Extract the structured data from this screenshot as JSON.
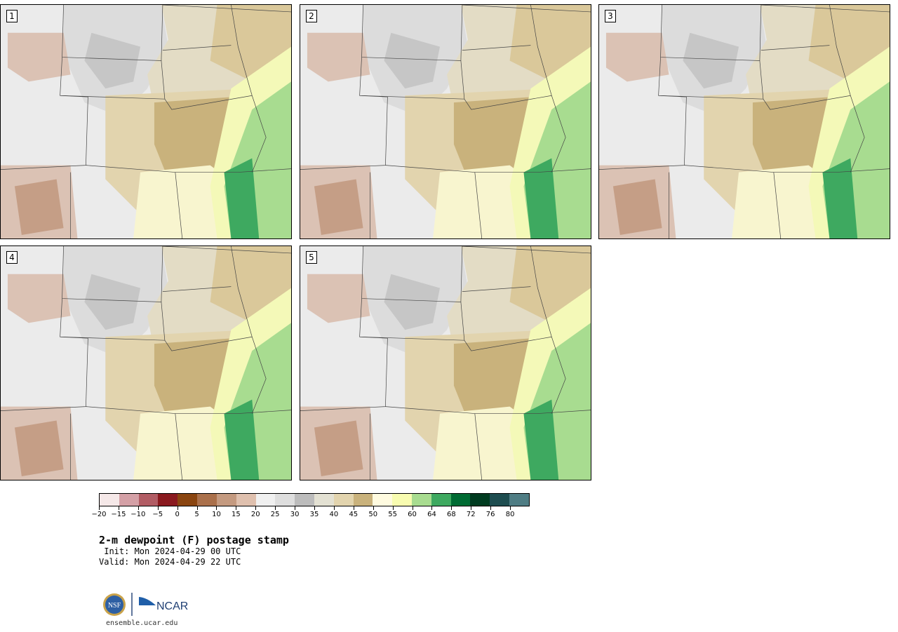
{
  "title": "2-m dewpoint (F) postage stamp",
  "init_line": " Init: Mon 2024-04-29 00 UTC",
  "valid_line": "Valid: Mon 2024-04-29 22 UTC",
  "website": "ensemble.ucar.edu",
  "logo_text": "NCAR",
  "nsf_text": "NSF",
  "panels": [
    {
      "label": "1"
    },
    {
      "label": "2"
    },
    {
      "label": "3"
    },
    {
      "label": "4"
    },
    {
      "label": "5"
    }
  ],
  "colorbar": {
    "colors": [
      "#f5e8e8",
      "#d4a0a6",
      "#b15c64",
      "#8a1a1f",
      "#8a4510",
      "#aa704b",
      "#c49a80",
      "#dfc0ae",
      "#f0f0f0",
      "#dedede",
      "#bcbcbc",
      "#e3e1d3",
      "#e2d4ae",
      "#c9b27c",
      "#fffbe0",
      "#f8fcb0",
      "#a8dc90",
      "#3ea960",
      "#006b33",
      "#003b20",
      "#1e4d50",
      "#4f7d84"
    ],
    "tick_labels": [
      "−20",
      "−15",
      "−10",
      "−5",
      "0",
      "5",
      "10",
      "15",
      "20",
      "25",
      "30",
      "35",
      "40",
      "45",
      "50",
      "55",
      "60",
      "64",
      "68",
      "72",
      "76",
      "80"
    ]
  },
  "colors": {
    "background": "#ffffff",
    "border": "#000000"
  }
}
